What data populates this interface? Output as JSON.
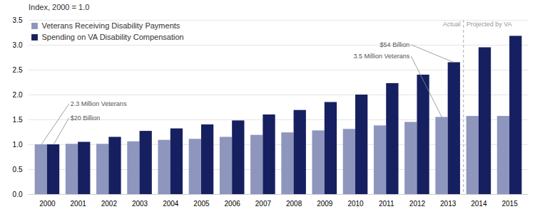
{
  "chart_data": {
    "type": "bar",
    "ylabel": "Index, 2000 = 1.0",
    "categories": [
      "2000",
      "2001",
      "2002",
      "2003",
      "2004",
      "2005",
      "2006",
      "2007",
      "2008",
      "2009",
      "2010",
      "2011",
      "2012",
      "2013",
      "2014",
      "2015"
    ],
    "series": [
      {
        "name": "Veterans Receiving Disability Payments",
        "color": "#8e96be",
        "values": [
          1.0,
          1.01,
          1.01,
          1.06,
          1.09,
          1.11,
          1.15,
          1.19,
          1.24,
          1.28,
          1.31,
          1.38,
          1.45,
          1.55,
          1.57,
          1.57
        ]
      },
      {
        "name": "Spending on VA Disability Compensation",
        "color": "#162060",
        "values": [
          1.0,
          1.05,
          1.15,
          1.27,
          1.32,
          1.4,
          1.48,
          1.6,
          1.69,
          1.85,
          2.0,
          2.23,
          2.4,
          2.65,
          2.95,
          3.18
        ]
      }
    ],
    "ylim": [
      0,
      3.5
    ],
    "yticks": [
      {
        "value": 0,
        "label": "0.0"
      },
      0.5,
      {
        "value": 1.0,
        "label": "1.0"
      },
      1.5,
      {
        "value": 2.0,
        "label": "2.0"
      },
      2.5,
      {
        "value": 3.0,
        "label": "3.0"
      },
      3.5
    ],
    "grid": true,
    "legend": "upper left",
    "annotations": [
      {
        "text": "2.3 Million Veterans",
        "category": "2000",
        "series": "Veterans Receiving Disability Payments"
      },
      {
        "text": "$20 Billion",
        "category": "2000",
        "series": "Spending on VA Disability Compensation"
      },
      {
        "text": "$54 Billion",
        "category": "2013",
        "series": "Spending on VA Disability Compensation"
      },
      {
        "text": "3.5 Million Veterans",
        "category": "2013",
        "series": "Veterans Receiving Disability Payments"
      }
    ],
    "divider": {
      "after": "2013",
      "labels": [
        "Actual",
        "Projected by VA"
      ]
    }
  }
}
